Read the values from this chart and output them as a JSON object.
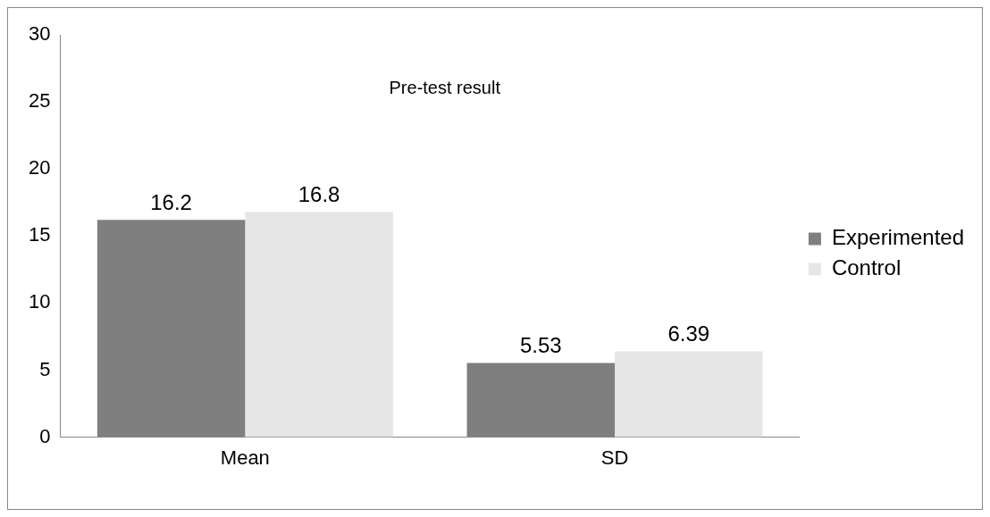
{
  "chart_data": {
    "type": "bar",
    "title": "Pre-test result",
    "categories": [
      "Mean",
      "SD"
    ],
    "series": [
      {
        "name": "Experimented",
        "color": "#7f7f7f",
        "values": [
          16.2,
          5.53
        ]
      },
      {
        "name": "Control",
        "color": "#e6e6e6",
        "values": [
          16.8,
          6.39
        ]
      }
    ],
    "ylim": [
      0,
      30
    ],
    "yticks": [
      0,
      5,
      10,
      15,
      20,
      25,
      30
    ],
    "grid": false,
    "legend": "right",
    "data_labels": true
  }
}
